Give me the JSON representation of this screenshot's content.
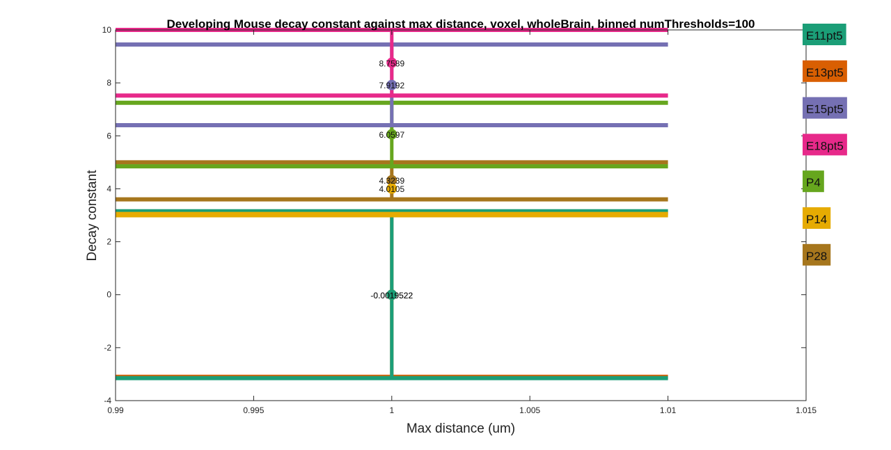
{
  "chart_data": {
    "type": "line",
    "title": "Developing Mouse decay constant against max distance, voxel, wholeBrain, binned numThresholds=100",
    "xlabel": "Max distance (um)",
    "ylabel": "Decay constant",
    "xlim": [
      0.99,
      1.015
    ],
    "ylim": [
      -4,
      10
    ],
    "xticks": [
      0.99,
      0.995,
      1,
      1.005,
      1.01,
      1.015
    ],
    "xtick_labels": [
      "0.99",
      "0.995",
      "1",
      "1.005",
      "1.01",
      "1.015"
    ],
    "yticks": [
      -4,
      -2,
      0,
      2,
      4,
      6,
      8,
      10
    ],
    "ytick_labels": [
      "-4",
      "-2",
      "0",
      "2",
      "4",
      "6",
      "8",
      "10"
    ],
    "grid": false,
    "legend_placement": "outside-right",
    "x_range": [
      0.99,
      1.01
    ],
    "series": [
      {
        "name": "E11pt5",
        "color": "#1b9e77",
        "x": [
          1
        ],
        "y": [
          -0.0019522
        ],
        "upper": 3.15,
        "lower": -3.15,
        "label": "-0.0019522"
      },
      {
        "name": "E13pt5",
        "color": "#d95f02",
        "x": [
          1
        ],
        "y": [
          -0.0019522
        ],
        "upper": 3.1,
        "lower": -3.1,
        "label": "-0.0019522"
      },
      {
        "name": "E15pt5",
        "color": "#7570b3",
        "x": [
          1
        ],
        "y": [
          7.9192
        ],
        "upper": 9.45,
        "lower": 6.4,
        "label": "7.9192"
      },
      {
        "name": "E18pt5",
        "color": "#e7298a",
        "x": [
          1
        ],
        "y": [
          8.7589
        ],
        "upper": 10.0,
        "lower": 7.52,
        "label": "8.7589"
      },
      {
        "name": "P4",
        "color": "#66a61e",
        "x": [
          1
        ],
        "y": [
          6.0597
        ],
        "upper": 7.25,
        "lower": 4.85,
        "label": "6.0597"
      },
      {
        "name": "P14",
        "color": "#e6ab02",
        "x": [
          1
        ],
        "y": [
          4.0105
        ],
        "upper": 3.05,
        "lower": 3.0,
        "label": "4.0105"
      },
      {
        "name": "P28",
        "color": "#a6761d",
        "x": [
          1
        ],
        "y": [
          4.3239
        ],
        "upper": 5.0,
        "lower": 3.6,
        "label": "4.3239"
      }
    ]
  }
}
